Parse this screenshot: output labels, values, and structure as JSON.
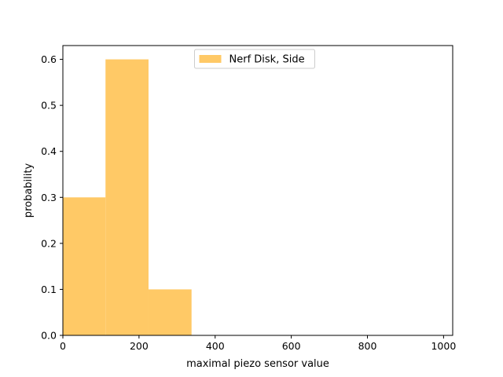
{
  "chart_data": {
    "type": "bar",
    "subtype": "histogram",
    "xlabel": "maximal piezo sensor value",
    "ylabel": "probability",
    "xlim": [
      0,
      1024
    ],
    "ylim": [
      0,
      0.63
    ],
    "xticks": [
      0,
      200,
      400,
      600,
      800,
      1000
    ],
    "yticks": [
      0.0,
      0.1,
      0.2,
      0.3,
      0.4,
      0.5,
      0.6
    ],
    "xtick_labels": [
      "0",
      "200",
      "400",
      "600",
      "800",
      "1000"
    ],
    "ytick_labels": [
      "0.0",
      "0.1",
      "0.2",
      "0.3",
      "0.4",
      "0.5",
      "0.6"
    ],
    "grid": false,
    "legend_position": "upper-center",
    "series": [
      {
        "name": "Nerf Disk, Side",
        "color": "#ffc966",
        "bins": [
          {
            "x0": 0,
            "x1": 112,
            "value": 0.3
          },
          {
            "x0": 112,
            "x1": 225,
            "value": 0.6
          },
          {
            "x0": 225,
            "x1": 338,
            "value": 0.1
          }
        ]
      }
    ]
  }
}
